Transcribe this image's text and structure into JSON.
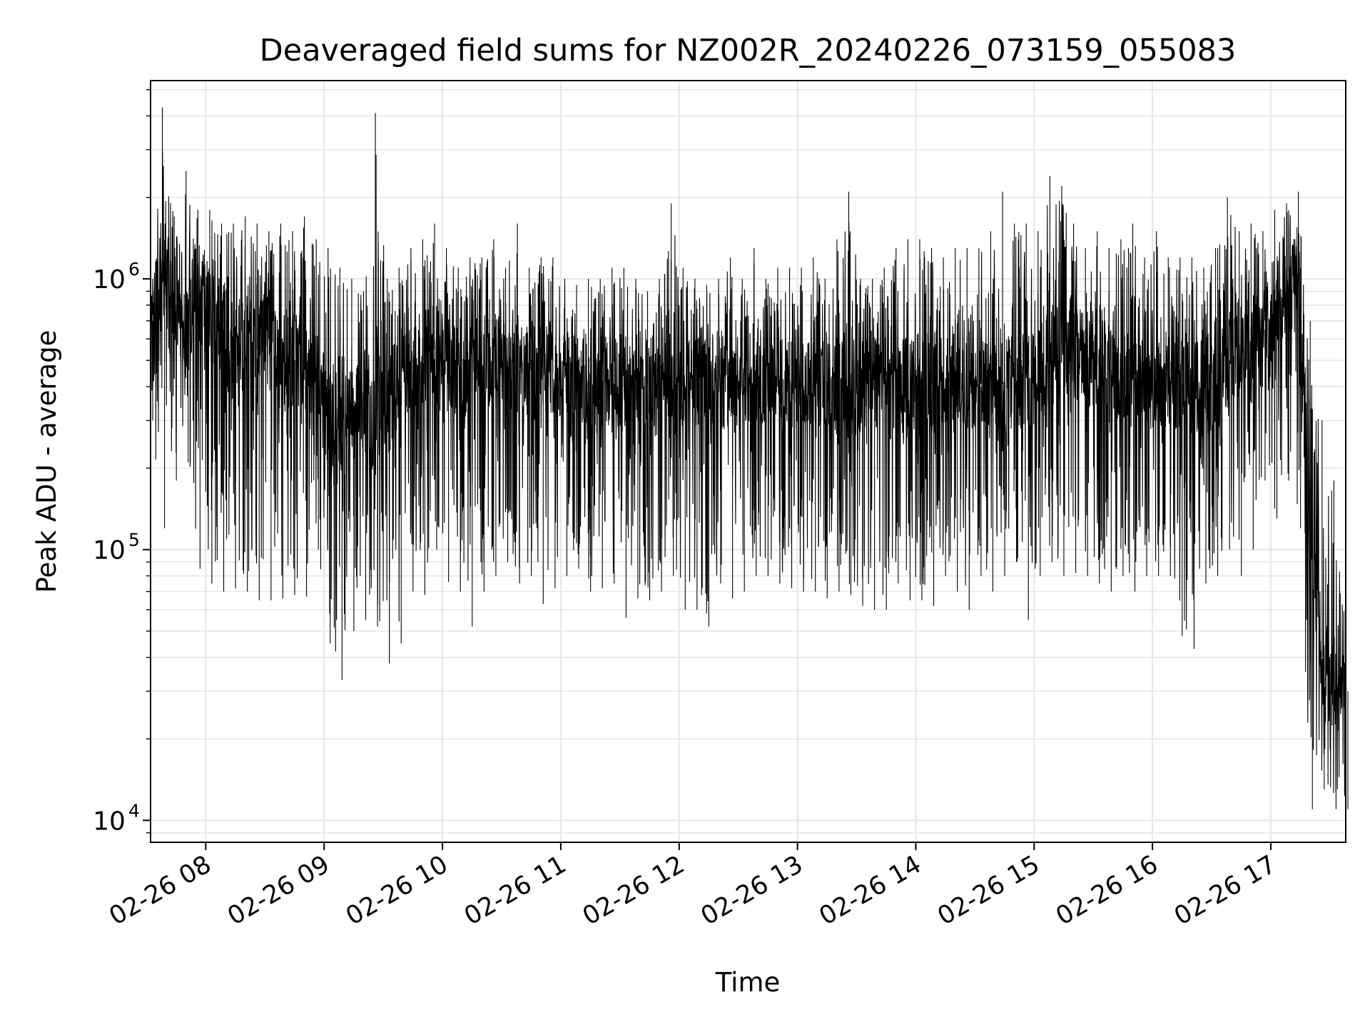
{
  "chart_data": {
    "type": "line",
    "title": "Deaveraged field sums for NZ002R_20240226_073159_055083",
    "xlabel": "Time",
    "ylabel": "Peak ADU - average",
    "yscale": "log",
    "ylim": [
      8300,
      5400000
    ],
    "xlim": [
      "2024-02-26 07:32",
      "2024-02-26 17:38"
    ],
    "grid": true,
    "line_color": "#000000",
    "x_tick_labels": [
      {
        "time": "2024-02-26 08:00",
        "label": "02-26 08"
      },
      {
        "time": "2024-02-26 09:00",
        "label": "02-26 09"
      },
      {
        "time": "2024-02-26 10:00",
        "label": "02-26 10"
      },
      {
        "time": "2024-02-26 11:00",
        "label": "02-26 11"
      },
      {
        "time": "2024-02-26 12:00",
        "label": "02-26 12"
      },
      {
        "time": "2024-02-26 13:00",
        "label": "02-26 13"
      },
      {
        "time": "2024-02-26 14:00",
        "label": "02-26 14"
      },
      {
        "time": "2024-02-26 15:00",
        "label": "02-26 15"
      },
      {
        "time": "2024-02-26 16:00",
        "label": "02-26 16"
      },
      {
        "time": "2024-02-26 17:00",
        "label": "02-26 17"
      }
    ],
    "y_tick_labels": [
      {
        "value": 10000,
        "base": "10",
        "exp": "4"
      },
      {
        "value": 100000,
        "base": "10",
        "exp": "5"
      },
      {
        "value": 1000000,
        "base": "10",
        "exp": "6"
      }
    ],
    "series": [
      {
        "x": [
          "2024-02-26 07:32",
          "2024-02-26 07:38",
          "2024-02-26 07:44",
          "2024-02-26 07:50",
          "2024-02-26 07:56",
          "2024-02-26 08:02",
          "2024-02-26 08:08",
          "2024-02-26 08:14",
          "2024-02-26 08:20",
          "2024-02-26 08:26",
          "2024-02-26 08:32",
          "2024-02-26 08:38",
          "2024-02-26 08:44",
          "2024-02-26 08:50",
          "2024-02-26 08:56",
          "2024-02-26 09:02",
          "2024-02-26 09:08",
          "2024-02-26 09:14",
          "2024-02-26 09:20",
          "2024-02-26 09:26",
          "2024-02-26 09:32",
          "2024-02-26 09:38",
          "2024-02-26 09:44",
          "2024-02-26 09:50",
          "2024-02-26 09:56",
          "2024-02-26 10:02",
          "2024-02-26 10:08",
          "2024-02-26 10:14",
          "2024-02-26 10:20",
          "2024-02-26 10:26",
          "2024-02-26 10:32",
          "2024-02-26 10:38",
          "2024-02-26 10:44",
          "2024-02-26 10:50",
          "2024-02-26 10:56",
          "2024-02-26 11:02",
          "2024-02-26 11:08",
          "2024-02-26 11:14",
          "2024-02-26 11:20",
          "2024-02-26 11:26",
          "2024-02-26 11:32",
          "2024-02-26 11:38",
          "2024-02-26 11:44",
          "2024-02-26 11:50",
          "2024-02-26 11:56",
          "2024-02-26 12:02",
          "2024-02-26 12:08",
          "2024-02-26 12:14",
          "2024-02-26 12:20",
          "2024-02-26 12:26",
          "2024-02-26 12:32",
          "2024-02-26 12:38",
          "2024-02-26 12:44",
          "2024-02-26 12:50",
          "2024-02-26 12:56",
          "2024-02-26 13:02",
          "2024-02-26 13:08",
          "2024-02-26 13:14",
          "2024-02-26 13:20",
          "2024-02-26 13:26",
          "2024-02-26 13:32",
          "2024-02-26 13:38",
          "2024-02-26 13:44",
          "2024-02-26 13:50",
          "2024-02-26 13:56",
          "2024-02-26 14:02",
          "2024-02-26 14:08",
          "2024-02-26 14:14",
          "2024-02-26 14:20",
          "2024-02-26 14:26",
          "2024-02-26 14:32",
          "2024-02-26 14:38",
          "2024-02-26 14:44",
          "2024-02-26 14:50",
          "2024-02-26 14:56",
          "2024-02-26 15:02",
          "2024-02-26 15:08",
          "2024-02-26 15:14",
          "2024-02-26 15:20",
          "2024-02-26 15:26",
          "2024-02-26 15:32",
          "2024-02-26 15:38",
          "2024-02-26 15:44",
          "2024-02-26 15:50",
          "2024-02-26 15:56",
          "2024-02-26 16:02",
          "2024-02-26 16:08",
          "2024-02-26 16:14",
          "2024-02-26 16:20",
          "2024-02-26 16:26",
          "2024-02-26 16:32",
          "2024-02-26 16:38",
          "2024-02-26 16:44",
          "2024-02-26 16:50",
          "2024-02-26 16:56",
          "2024-02-26 17:02",
          "2024-02-26 17:08",
          "2024-02-26 17:14",
          "2024-02-26 17:20",
          "2024-02-26 17:26",
          "2024-02-26 17:32",
          "2024-02-26 17:38"
        ],
        "y": [
          700000,
          1200000,
          800000,
          600000,
          900000,
          700000,
          650000,
          500000,
          750000,
          550000,
          600000,
          450000,
          500000,
          500000,
          450000,
          300000,
          250000,
          320000,
          350000,
          300000,
          320000,
          380000,
          450000,
          500000,
          550000,
          500000,
          480000,
          450000,
          500000,
          520000,
          480000,
          460000,
          500000,
          470000,
          450000,
          430000,
          420000,
          400000,
          420000,
          410000,
          400000,
          420000,
          410000,
          400000,
          380000,
          400000,
          410000,
          420000,
          400000,
          390000,
          400000,
          410000,
          420000,
          400000,
          410000,
          400000,
          420000,
          410000,
          400000,
          390000,
          400000,
          410000,
          420000,
          400000,
          400000,
          420000,
          410000,
          430000,
          420000,
          410000,
          400000,
          420000,
          410000,
          420000,
          430000,
          440000,
          500000,
          600000,
          550000,
          500000,
          480000,
          460000,
          450000,
          430000,
          420000,
          400000,
          420000,
          410000,
          400000,
          380000,
          400000,
          500000,
          550000,
          600000,
          650000,
          700000,
          800000,
          1100000,
          100000,
          40000,
          30000,
          30000
        ],
        "upper": [
          1500000,
          4300000,
          1700000,
          2500000,
          1800000,
          1800000,
          1600000,
          1600000,
          1700000,
          1600000,
          1500000,
          1600000,
          1500000,
          1700000,
          1400000,
          1300000,
          1100000,
          1000000,
          900000,
          4100000,
          1000000,
          1100000,
          1300000,
          1400000,
          1600000,
          1300000,
          1100000,
          1200000,
          1200000,
          1400000,
          1100000,
          1600000,
          1100000,
          1200000,
          1200000,
          1000000,
          950000,
          1000000,
          1000000,
          1100000,
          1100000,
          1000000,
          900000,
          1000000,
          1900000,
          1100000,
          1000000,
          950000,
          1000000,
          1200000,
          1000000,
          1300000,
          1000000,
          1100000,
          1100000,
          1100000,
          1200000,
          1000000,
          1400000,
          2100000,
          1000000,
          1000000,
          1100000,
          1300000,
          1400000,
          1400000,
          1300000,
          1200000,
          1300000,
          1300000,
          1300000,
          1500000,
          2100000,
          1600000,
          1600000,
          1500000,
          2400000,
          2200000,
          1600000,
          1300000,
          1500000,
          1300000,
          1400000,
          1600000,
          1200000,
          1500000,
          1200000,
          1200000,
          1200000,
          1100000,
          1300000,
          2000000,
          1500000,
          1600000,
          1500000,
          1800000,
          1900000,
          2100000,
          700000,
          300000,
          180000,
          100000
        ],
        "lower": [
          300000,
          120000,
          180000,
          210000,
          85000,
          75000,
          70000,
          72000,
          70000,
          65000,
          65000,
          66000,
          68000,
          67000,
          100000,
          45000,
          33000,
          50000,
          55000,
          52000,
          38000,
          45000,
          70000,
          68000,
          100000,
          76000,
          70000,
          52000,
          70000,
          80000,
          90000,
          75000,
          80000,
          63000,
          72000,
          80000,
          85000,
          70000,
          72000,
          75000,
          56000,
          66000,
          65000,
          70000,
          80000,
          60000,
          60000,
          52000,
          75000,
          66000,
          70000,
          80000,
          80000,
          75000,
          72000,
          70000,
          70000,
          66000,
          70000,
          68000,
          62000,
          60000,
          60000,
          75000,
          65000,
          65000,
          62000,
          80000,
          70000,
          60000,
          80000,
          70000,
          80000,
          90000,
          55000,
          80000,
          90000,
          80000,
          82000,
          80000,
          75000,
          70000,
          80000,
          70000,
          80000,
          80000,
          80000,
          48000,
          43000,
          75000,
          80000,
          100000,
          80000,
          100000,
          180000,
          130000,
          180000,
          120000,
          11000,
          13000,
          11000,
          11000
        ]
      }
    ]
  }
}
